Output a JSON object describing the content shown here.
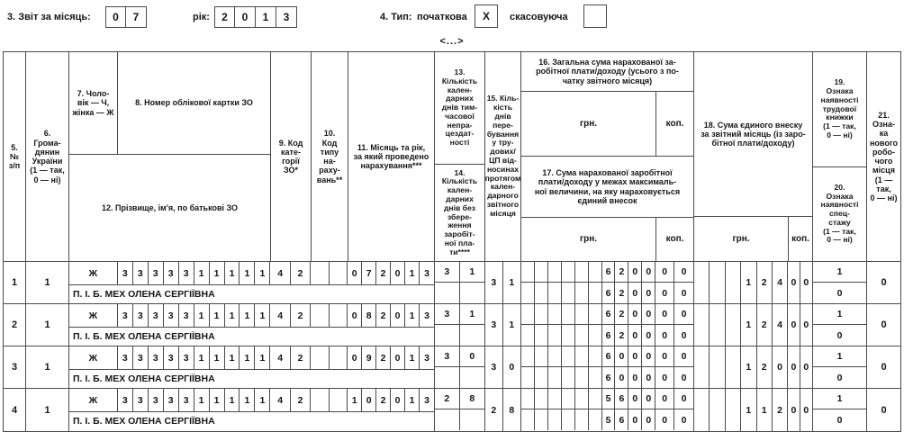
{
  "form": {
    "report_month_label": "3. Звіт за місяць:",
    "month_digits": [
      "0",
      "7"
    ],
    "year_label": "рік:",
    "year_digits": [
      "2",
      "0",
      "1",
      "3"
    ],
    "type_label": "4. Тип:",
    "type_initial_label": "початкова",
    "type_initial_value": "X",
    "type_cancel_label": "скасовуюча",
    "type_cancel_value": "",
    "collapsed_marker": "<...>"
  },
  "table": {
    "headers": {
      "c5": "5.\n№\nз/п",
      "c6": "6.\nГрома-\nдянин\nУкраїни\n(1 — так,\n0 — ні)",
      "c7": "7. Чоло-\nвік — Ч,\nжінка — Ж",
      "c8": "8. Номер облікової картки ЗО",
      "c12": "12. Прізвище, ім'я, по батькові ЗО",
      "c9": "9. Код\nкате-\nгорії\nЗО*",
      "c10": "10.\nКод\nтипу\nна-\nраху-\nвань**",
      "c11": "11. Місяць та рік,\nза який проведено\nнарахування***",
      "c13": "13.\nКількість\nкален-\nдарних\nднів тим-\nчасової\nнепра-\nцездат-\nності",
      "c14": "14.\nКількість\nкален-\nдарних\nднів без\nзбере-\nження\nзаробіт-\nної пла-\nти****",
      "c15": "15. Кіль-\nкість днів\nпере-\nбування\nу тру-\nдових/\nЦП від-\nносинах\nпротягом\nкален-\nдарного\nзвітного\nмісяця",
      "c16": "16. Загальна сума нарахованої за-\nробітної плати/доходу (усього з по-\nчатку звітного місяця)",
      "c17": "17. Сума нарахованої заробітної\nплати/доходу у межах максималь-\nної величини, на яку нараховується\nєдиний внесок",
      "c18": "18. Сума єдиного внеску\nза звітний місяць (із заро-\nбітної плати/доходу)",
      "c19": "19.\nОзнака\nнаявності\nтрудової\nкнижки\n(1 — так,\n0 — ні)",
      "c20": "20.\nОзнака\nнаявності\nспец-\nстажу\n(1 — так,\n0 — ні)",
      "c21": "21.\nОзна-\nка\nнового\nробо-\nчого\nмісця\n(1 —\nтак,\n0 — ні)",
      "grn": "грн.",
      "kop": "коп."
    },
    "rows": [
      {
        "num": "1",
        "citizen": "1",
        "sex": "Ж",
        "card": [
          "3",
          "3",
          "3",
          "3",
          "3",
          "1",
          "1",
          "1",
          "1",
          "1"
        ],
        "category": [
          "4",
          "2"
        ],
        "accrual_type": [
          "",
          ""
        ],
        "month_year": [
          "0",
          "7",
          "2",
          "0",
          "1",
          "3"
        ],
        "c13_days": [
          "3",
          "1"
        ],
        "c14_days": [
          "",
          ""
        ],
        "name": "П. І. Б. МЕХ ОЛЕНА СЕРГІЇВНА",
        "c15_days": [
          "3",
          "1"
        ],
        "c16_grn": [
          "",
          "",
          "",
          "",
          "",
          "",
          "6",
          "2",
          "0",
          "0"
        ],
        "c16_kop": [
          "0",
          "0"
        ],
        "c17_grn": [
          "",
          "",
          "",
          "",
          "",
          "",
          "6",
          "2",
          "0",
          "0"
        ],
        "c17_kop": [
          "0",
          "0"
        ],
        "c18_grn": [
          "",
          "",
          "",
          "1",
          "2",
          "4"
        ],
        "c18_kop": [
          "0",
          "0"
        ],
        "c19": "1",
        "c20": "0",
        "c21": "0"
      },
      {
        "num": "2",
        "citizen": "1",
        "sex": "Ж",
        "card": [
          "3",
          "3",
          "3",
          "3",
          "3",
          "1",
          "1",
          "1",
          "1",
          "1"
        ],
        "category": [
          "4",
          "2"
        ],
        "accrual_type": [
          "",
          ""
        ],
        "month_year": [
          "0",
          "8",
          "2",
          "0",
          "1",
          "3"
        ],
        "c13_days": [
          "3",
          "1"
        ],
        "c14_days": [
          "",
          ""
        ],
        "name": "П. І. Б. МЕХ ОЛЕНА СЕРГІЇВНА",
        "c15_days": [
          "3",
          "1"
        ],
        "c16_grn": [
          "",
          "",
          "",
          "",
          "",
          "",
          "6",
          "2",
          "0",
          "0"
        ],
        "c16_kop": [
          "0",
          "0"
        ],
        "c17_grn": [
          "",
          "",
          "",
          "",
          "",
          "",
          "6",
          "2",
          "0",
          "0"
        ],
        "c17_kop": [
          "0",
          "0"
        ],
        "c18_grn": [
          "",
          "",
          "",
          "1",
          "2",
          "4"
        ],
        "c18_kop": [
          "0",
          "0"
        ],
        "c19": "1",
        "c20": "0",
        "c21": "0"
      },
      {
        "num": "3",
        "citizen": "1",
        "sex": "Ж",
        "card": [
          "3",
          "3",
          "3",
          "3",
          "3",
          "1",
          "1",
          "1",
          "1",
          "1"
        ],
        "category": [
          "4",
          "2"
        ],
        "accrual_type": [
          "",
          ""
        ],
        "month_year": [
          "0",
          "9",
          "2",
          "0",
          "1",
          "3"
        ],
        "c13_days": [
          "3",
          "0"
        ],
        "c14_days": [
          "",
          ""
        ],
        "name": "П. І. Б. МЕХ ОЛЕНА СЕРГІЇВНА",
        "c15_days": [
          "3",
          "0"
        ],
        "c16_grn": [
          "",
          "",
          "",
          "",
          "",
          "",
          "6",
          "0",
          "0",
          "0"
        ],
        "c16_kop": [
          "0",
          "0"
        ],
        "c17_grn": [
          "",
          "",
          "",
          "",
          "",
          "",
          "6",
          "0",
          "0",
          "0"
        ],
        "c17_kop": [
          "0",
          "0"
        ],
        "c18_grn": [
          "",
          "",
          "",
          "1",
          "2",
          "0"
        ],
        "c18_kop": [
          "0",
          "0"
        ],
        "c19": "1",
        "c20": "0",
        "c21": "0"
      },
      {
        "num": "4",
        "citizen": "1",
        "sex": "Ж",
        "card": [
          "3",
          "3",
          "3",
          "3",
          "3",
          "1",
          "1",
          "1",
          "1",
          "1"
        ],
        "category": [
          "4",
          "2"
        ],
        "accrual_type": [
          "",
          ""
        ],
        "month_year": [
          "1",
          "0",
          "2",
          "0",
          "1",
          "3"
        ],
        "c13_days": [
          "2",
          "8"
        ],
        "c14_days": [
          "",
          ""
        ],
        "name": "П. І. Б. МЕХ ОЛЕНА СЕРГІЇВНА",
        "c15_days": [
          "2",
          "8"
        ],
        "c16_grn": [
          "",
          "",
          "",
          "",
          "",
          "",
          "5",
          "6",
          "0",
          "0"
        ],
        "c16_kop": [
          "0",
          "0"
        ],
        "c17_grn": [
          "",
          "",
          "",
          "",
          "",
          "",
          "5",
          "6",
          "0",
          "0"
        ],
        "c17_kop": [
          "0",
          "0"
        ],
        "c18_grn": [
          "",
          "",
          "",
          "1",
          "1",
          "2"
        ],
        "c18_kop": [
          "0",
          "0"
        ],
        "c19": "1",
        "c20": "0",
        "c21": "0"
      }
    ]
  }
}
